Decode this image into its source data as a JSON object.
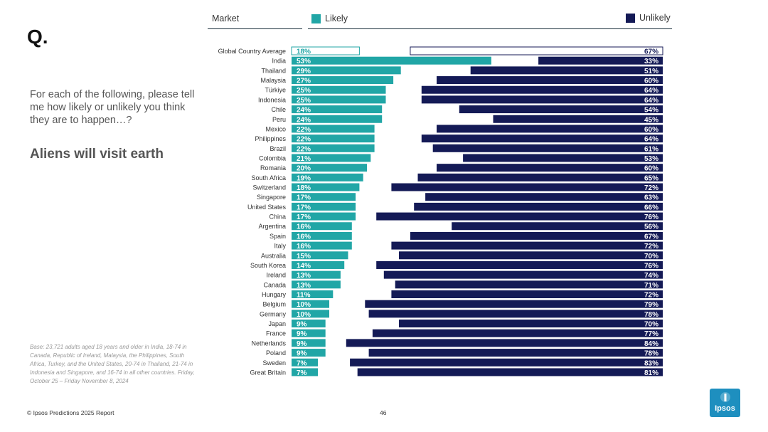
{
  "page": {
    "q_label": "Q.",
    "question": "For each of the following, please tell me how likely or unlikely you think they are to happen…?",
    "statement": "Aliens will visit earth",
    "base_note": "Base: 23,721 adults aged 18 years and older in India, 18-74 in Canada, Republic of Ireland, Malaysia, the Philippines, South Africa, Turkey, and the United States, 20-74 in Thailand, 21-74 in Indonesia and Singapore, and 16-74 in all other countries. Friday, October 25 – Friday November 8, 2024",
    "footer": "© Ipsos Predictions 2025 Report",
    "page_number": "46",
    "logo_text": "Ipsos"
  },
  "legend": {
    "market_label": "Market",
    "likely_label": "Likely",
    "unlikely_label": "Unlikely"
  },
  "colors": {
    "likely": "#21a6a6",
    "unlikely": "#141a56",
    "average_outline_likely": "#21a6a6",
    "average_outline_unlikely": "#141a56"
  },
  "chart_data": {
    "type": "bar",
    "orientation": "horizontal-diverging",
    "categories": [
      "Global Country Average",
      "India",
      "Thailand",
      "Malaysia",
      "Türkiye",
      "Indonesia",
      "Chile",
      "Peru",
      "Mexico",
      "Philippines",
      "Brazil",
      "Colombia",
      "Romania",
      "South Africa",
      "Switzerland",
      "Singapore",
      "United States",
      "China",
      "Argentina",
      "Spain",
      "Italy",
      "Australia",
      "South Korea",
      "Ireland",
      "Canada",
      "Hungary",
      "Belgium",
      "Germany",
      "Japan",
      "France",
      "Netherlands",
      "Poland",
      "Sweden",
      "Great Britain"
    ],
    "series": [
      {
        "name": "Likely",
        "values": [
          18,
          53,
          29,
          27,
          25,
          25,
          24,
          24,
          22,
          22,
          22,
          21,
          20,
          19,
          18,
          17,
          17,
          17,
          16,
          16,
          16,
          15,
          14,
          13,
          13,
          11,
          10,
          10,
          9,
          9,
          9,
          9,
          7,
          7
        ]
      },
      {
        "name": "Unlikely",
        "values": [
          67,
          33,
          51,
          60,
          64,
          64,
          54,
          45,
          60,
          64,
          61,
          53,
          60,
          65,
          72,
          63,
          66,
          76,
          56,
          67,
          72,
          70,
          76,
          74,
          71,
          72,
          79,
          78,
          70,
          77,
          84,
          78,
          83,
          81
        ]
      }
    ],
    "value_suffix": "%",
    "xlim": [
      0,
      100
    ]
  }
}
